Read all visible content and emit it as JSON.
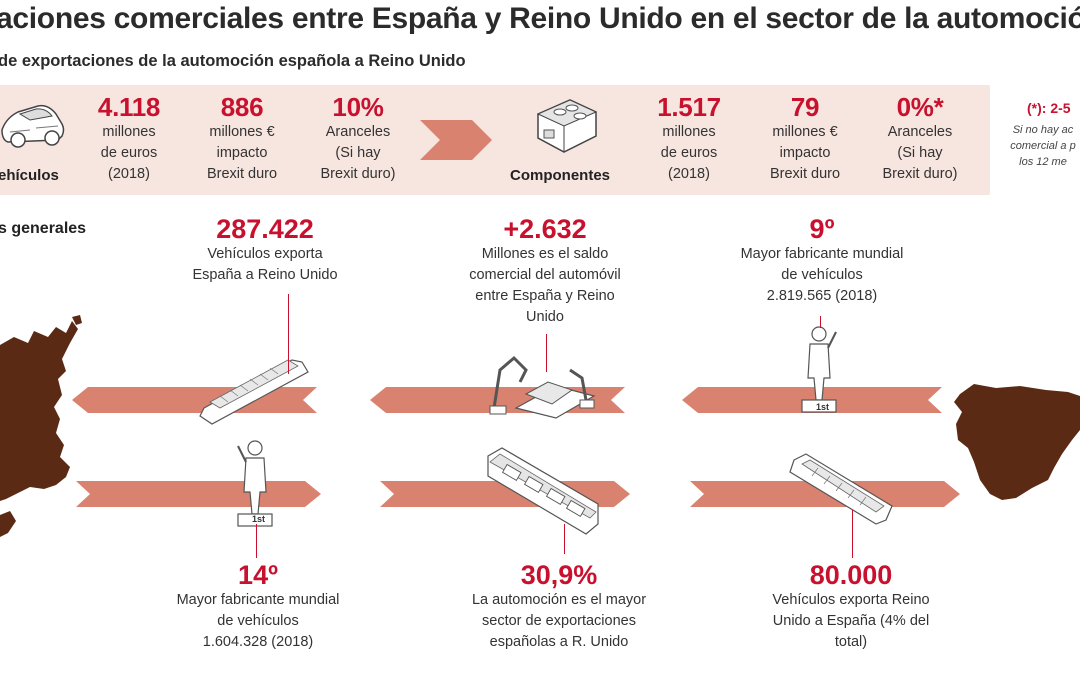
{
  "title": "aciones comerciales entre España y Reino Unido en el sector de la automoció",
  "subtitle": "de exportaciones de la automoción española a Reino Unido",
  "export_panel": {
    "vehiculos": {
      "label": "ehículos",
      "icon": "car-icon",
      "value": "4.118",
      "value_lines": [
        "millones",
        "de euros",
        "(2018)"
      ],
      "impact": "886",
      "impact_lines": [
        "millones €",
        "impacto",
        "Brexit duro"
      ],
      "tariff": "10%",
      "tariff_lines": [
        "Aranceles",
        "(Si hay",
        "Brexit duro)"
      ]
    },
    "componentes": {
      "label": "Componentes",
      "icon": "engine-icon",
      "value": "1.517",
      "value_lines": [
        "millones",
        "de euros",
        "(2018)"
      ],
      "impact": "79",
      "impact_lines": [
        "millones €",
        "impacto",
        "Brexit duro"
      ],
      "tariff": "0%*",
      "tariff_lines": [
        "Aranceles",
        "(Si hay",
        "Brexit duro)"
      ]
    },
    "note": {
      "head": "(*): 2-5",
      "lines": [
        "Si no hay ac",
        "comercial a p",
        "los 12 me"
      ]
    }
  },
  "section_head": "s generales",
  "stats_top": [
    {
      "value": "287.422",
      "lines": [
        "Vehículos exporta",
        "España a Reino Unido"
      ]
    },
    {
      "value": "+2.632",
      "lines": [
        "Millones es el saldo",
        "comercial del automóvil",
        "entre España y Reino",
        "Unido"
      ]
    },
    {
      "value": "9º",
      "lines": [
        "Mayor fabricante mundial",
        "de vehículos",
        "2.819.565 (2018)"
      ]
    }
  ],
  "stats_bottom": [
    {
      "value": "14º",
      "lines": [
        "Mayor fabricante mundial",
        "de vehículos",
        "1.604.328 (2018)"
      ]
    },
    {
      "value": "30,9%",
      "lines": [
        "La automoción es el mayor",
        "sector de exportaciones",
        "españolas a R. Unido"
      ]
    },
    {
      "value": "80.000",
      "lines": [
        "Vehículos exporta Reino",
        "Unido a España (4% del",
        "total)"
      ]
    }
  ],
  "podium_label": "1st",
  "colors": {
    "accent": "#c8112e",
    "band": "#d9826f",
    "panel": "#f7e5df",
    "map": "#5a2a14"
  }
}
